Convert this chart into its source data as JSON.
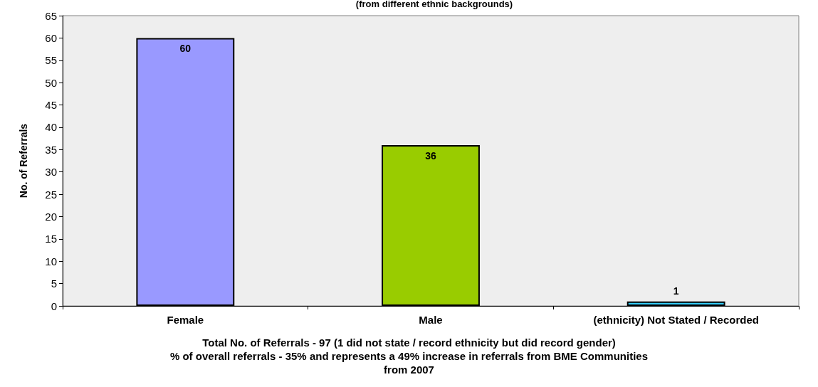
{
  "chart_data": {
    "type": "bar",
    "subtitle": "(from different ethnic backgrounds)",
    "ylabel": "No. of Referrals",
    "categories": [
      "Female",
      "Male",
      "(ethnicity) Not Stated / Recorded"
    ],
    "values": [
      60,
      36,
      1
    ],
    "colors": [
      "#9999ff",
      "#99cc00",
      "#33ccff"
    ],
    "ylim": [
      0,
      65
    ],
    "yticks": [
      0,
      5,
      10,
      15,
      20,
      25,
      30,
      35,
      40,
      45,
      50,
      55,
      60,
      65
    ],
    "grid": false,
    "data_labels": true,
    "annotations": [
      "Total No. of Referrals - 97 (1 did not state / record ethnicity but did record gender)",
      "% of overall referrals - 35% and represents a 49% increase in referrals from BME Communities\nfrom 2007"
    ]
  }
}
